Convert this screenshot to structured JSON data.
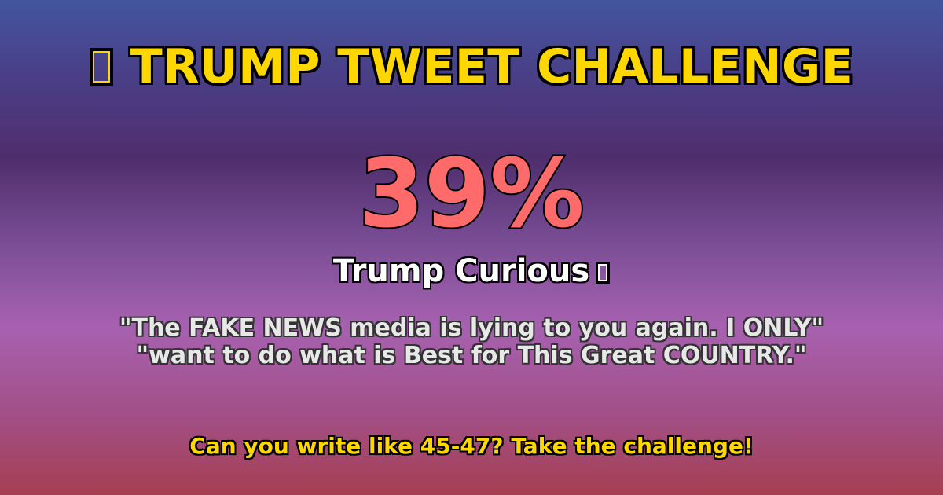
{
  "title": {
    "icon": "missing-glyph-box",
    "text": "TRUMP TWEET CHALLENGE"
  },
  "score": {
    "text": "39%"
  },
  "rating": {
    "label": "Trump Curious",
    "icon": "missing-glyph-box"
  },
  "quote": {
    "line1": "\"The FAKE NEWS media is lying to you again.  I ONLY\"",
    "line2": "\"want to do what is Best for This Great COUNTRY.\""
  },
  "cta": {
    "text": "Can you write like 45-47? Take the challenge!"
  },
  "colors": {
    "title": "#ffd700",
    "score": "#ff6b6b",
    "rating": "#ffffff",
    "quote": "#e8e8e8",
    "cta": "#ffd700"
  }
}
